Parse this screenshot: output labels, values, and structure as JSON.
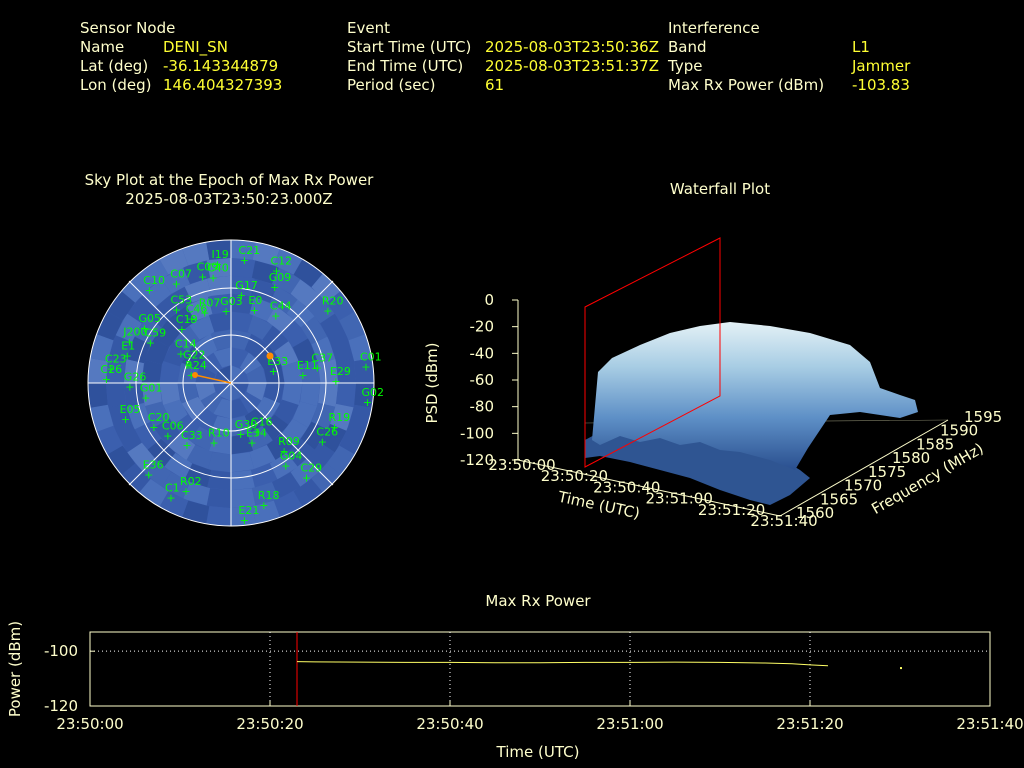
{
  "sensor": {
    "heading": "Sensor Node",
    "name_label": "Name",
    "name_value": "DENI_SN",
    "lat_label": "Lat (deg)",
    "lat_value": "-36.143344879",
    "lon_label": "Lon (deg)",
    "lon_value": "146.404327393"
  },
  "event": {
    "heading": "Event",
    "start_label": "Start Time (UTC)",
    "start_value": "2025-08-03T23:50:36Z",
    "end_label": "End Time (UTC)",
    "end_value": "2025-08-03T23:51:37Z",
    "period_label": "Period (sec)",
    "period_value": "61"
  },
  "interference": {
    "heading": "Interference",
    "band_label": "Band",
    "band_value": "L1",
    "type_label": "Type",
    "type_value": "Jammer",
    "power_label": "Max Rx Power (dBm)",
    "power_value": "-103.83"
  },
  "colors": {
    "label": "#ffffcc",
    "value": "#ffff33",
    "sat_label": "#00ff00",
    "sky_fill": "#3d5fae",
    "marker": "#ff8c00",
    "cursor": "#ff0000"
  },
  "chart_data": [
    {
      "type": "scatter",
      "title": "Sky Plot at the Epoch of Max Rx Power",
      "subtitle": "2025-08-03T23:50:23.000Z",
      "satellites": [
        {
          "id": "I19",
          "az": -7,
          "el": 10
        },
        {
          "id": "C21",
          "az": 5,
          "el": 8
        },
        {
          "id": "C12",
          "az": 20,
          "el": 10
        },
        {
          "id": "C10",
          "az": -40,
          "el": 8
        },
        {
          "id": "C07",
          "az": -28,
          "el": 14
        },
        {
          "id": "C09",
          "az": -15,
          "el": 16
        },
        {
          "id": "C40",
          "az": -10,
          "el": 18
        },
        {
          "id": "G09",
          "az": 22,
          "el": 20
        },
        {
          "id": "C53",
          "az": -35,
          "el": 28
        },
        {
          "id": "G17",
          "az": 5,
          "el": 30
        },
        {
          "id": "E0",
          "az": 15,
          "el": 38
        },
        {
          "id": "C44",
          "az": 30,
          "el": 36
        },
        {
          "id": "R07",
          "az": -20,
          "el": 38
        },
        {
          "id": "C46",
          "az": -30,
          "el": 38
        },
        {
          "id": "G03",
          "az": -5,
          "el": 40
        },
        {
          "id": "C19",
          "az": -40,
          "el": 40
        },
        {
          "id": "G05",
          "az": -55,
          "el": 22
        },
        {
          "id": "J200",
          "az": -65,
          "el": 18
        },
        {
          "id": "C59",
          "az": -60,
          "el": 30
        },
        {
          "id": "E1",
          "az": -72,
          "el": 20
        },
        {
          "id": "C14",
          "az": -55,
          "el": 50
        },
        {
          "id": "G22",
          "az": -60,
          "el": 58
        },
        {
          "id": "R24",
          "az": -70,
          "el": 62
        },
        {
          "id": "G01",
          "az": -95,
          "el": 35
        },
        {
          "id": "G26",
          "az": -88,
          "el": 25
        },
        {
          "id": "C23",
          "az": -80,
          "el": 12
        },
        {
          "id": "C26",
          "az": -85,
          "el": 10
        },
        {
          "id": "E05",
          "az": -105,
          "el": 20
        },
        {
          "id": "C20",
          "az": -115,
          "el": 35
        },
        {
          "id": "C06",
          "az": -125,
          "el": 40
        },
        {
          "id": "C33",
          "az": -140,
          "el": 45
        },
        {
          "id": "R10",
          "az": -160,
          "el": 55
        },
        {
          "id": "E36",
          "az": -135,
          "el": 15
        },
        {
          "id": "R02",
          "az": -155,
          "el": 20
        },
        {
          "id": "C1",
          "az": -150,
          "el": 12
        },
        {
          "id": "E33",
          "az": 65,
          "el": 62
        },
        {
          "id": "R20",
          "az": 50,
          "el": 12
        },
        {
          "id": "C01",
          "az": 80,
          "el": 5
        },
        {
          "id": "E29",
          "az": 85,
          "el": 25
        },
        {
          "id": "E11",
          "az": 78,
          "el": 45
        },
        {
          "id": "C37",
          "az": 75,
          "el": 35
        },
        {
          "id": "G02",
          "az": 95,
          "el": 5
        },
        {
          "id": "R19",
          "az": 110,
          "el": 22
        },
        {
          "id": "C26",
          "az": 120,
          "el": 25
        },
        {
          "id": "R09",
          "az": 140,
          "el": 40
        },
        {
          "id": "G04",
          "az": 145,
          "el": 32
        },
        {
          "id": "C29",
          "az": 140,
          "el": 18
        },
        {
          "id": "E34",
          "az": 160,
          "el": 55
        },
        {
          "id": "G30",
          "az": 170,
          "el": 62
        },
        {
          "id": "R18",
          "az": 165,
          "el": 15
        },
        {
          "id": "E21",
          "az": 175,
          "el": 8
        },
        {
          "id": "C16",
          "az": 150,
          "el": 60
        }
      ]
    },
    {
      "type": "area",
      "title": "Waterfall Plot",
      "xlabel": "Time (UTC)",
      "ylabel": "Frequency (MHz)",
      "zlabel": "PSD (dBm)",
      "time_ticks": [
        "23:50:00",
        "23:50:20",
        "23:50:40",
        "23:51:00",
        "23:51:20",
        "23:51:40"
      ],
      "freq_ticks": [
        "1560",
        "1565",
        "1570",
        "1575",
        "1580",
        "1585",
        "1590",
        "1595"
      ],
      "psd_ticks": [
        "0",
        "-20",
        "-40",
        "-60",
        "-80",
        "-100",
        "-120"
      ],
      "zlim": [
        -120,
        0
      ],
      "cursor_time": "23:50:23",
      "jammer_band_mhz": [
        1566,
        1588
      ],
      "plateau_psd_dbm": -20,
      "noise_psd_dbm": -95
    },
    {
      "type": "line",
      "title": "Max Rx Power",
      "xlabel": "Time (UTC)",
      "ylabel": "Power (dBm)",
      "x_ticks": [
        "23:50:00",
        "23:50:20",
        "23:50:40",
        "23:51:00",
        "23:51:20",
        "23:51:40"
      ],
      "y_ticks": [
        "-100",
        "-120"
      ],
      "ylim": [
        -120,
        -93
      ],
      "cursor_time_sec": 23,
      "series": [
        {
          "t": [
            23,
            25,
            30,
            35,
            40,
            45,
            50,
            55,
            60,
            65,
            70,
            75,
            78,
            80,
            82
          ],
          "values": [
            -103.8,
            -103.9,
            -104.0,
            -104.1,
            -104.1,
            -104.2,
            -104.2,
            -104.1,
            -104.1,
            -104.0,
            -104.1,
            -104.3,
            -104.6,
            -105.0,
            -105.3
          ]
        }
      ],
      "isolated_point": {
        "t": 90,
        "value": -105.8
      },
      "grid": true
    }
  ]
}
